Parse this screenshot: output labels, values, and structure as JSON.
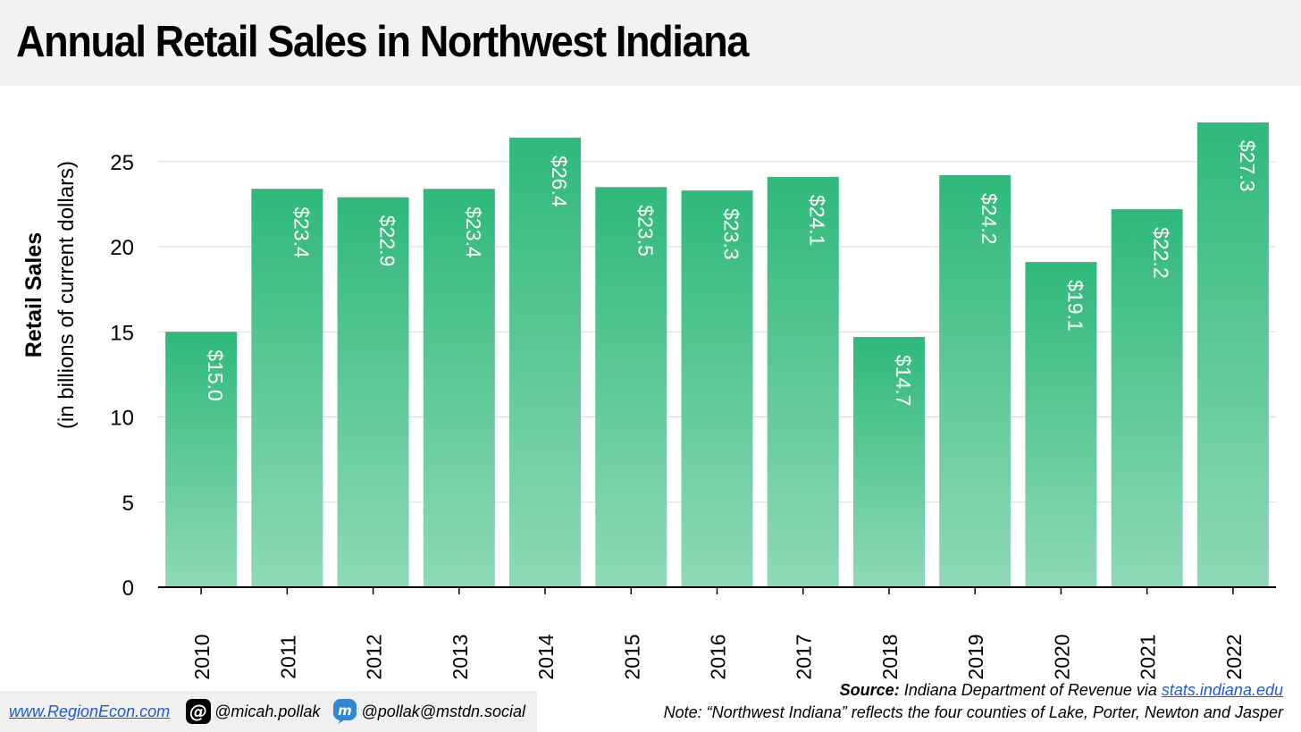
{
  "title": "Annual Retail Sales in Northwest Indiana",
  "colors": {
    "bar_top": "#2fb97a",
    "bar_bottom": "#8fd9b8",
    "grid": "#d9d9d9",
    "header_bg": "#f2f2f2",
    "link": "#1f5bd0"
  },
  "chart_data": {
    "type": "bar",
    "title": "Annual Retail Sales in Northwest Indiana",
    "categories": [
      "2010",
      "2011",
      "2012",
      "2013",
      "2014",
      "2015",
      "2016",
      "2017",
      "2018",
      "2019",
      "2020",
      "2021",
      "2022"
    ],
    "values": [
      15.0,
      23.4,
      22.9,
      23.4,
      26.4,
      23.5,
      23.3,
      24.1,
      14.7,
      24.2,
      19.1,
      22.2,
      27.3
    ],
    "data_labels": [
      "$15.0",
      "$23.4",
      "$22.9",
      "$23.4",
      "$26.4",
      "$23.5",
      "$23.3",
      "$24.1",
      "$14.7",
      "$24.2",
      "$19.1",
      "$22.2",
      "$27.3"
    ],
    "ylabel": "Retail Sales",
    "ylabel_sub": "(in billions of current dollars)",
    "xlabel": "",
    "ylim": [
      0,
      27.3
    ],
    "yticks": [
      0,
      5,
      10,
      15,
      20,
      25
    ],
    "grid": true,
    "legend": "none"
  },
  "footer": {
    "website": "www.RegionEcon.com",
    "threads_handle": "@micah.pollak",
    "mastodon_handle": "@pollak@mstdn.social",
    "source_label": "Source:",
    "source_text": " Indiana Department of Revenue via ",
    "source_link": "stats.indiana.edu",
    "note": "Note: “Northwest Indiana” reflects the four counties of Lake, Porter, Newton and Jasper"
  },
  "icons": {
    "threads": "threads-icon",
    "mastodon": "mastodon-icon"
  }
}
